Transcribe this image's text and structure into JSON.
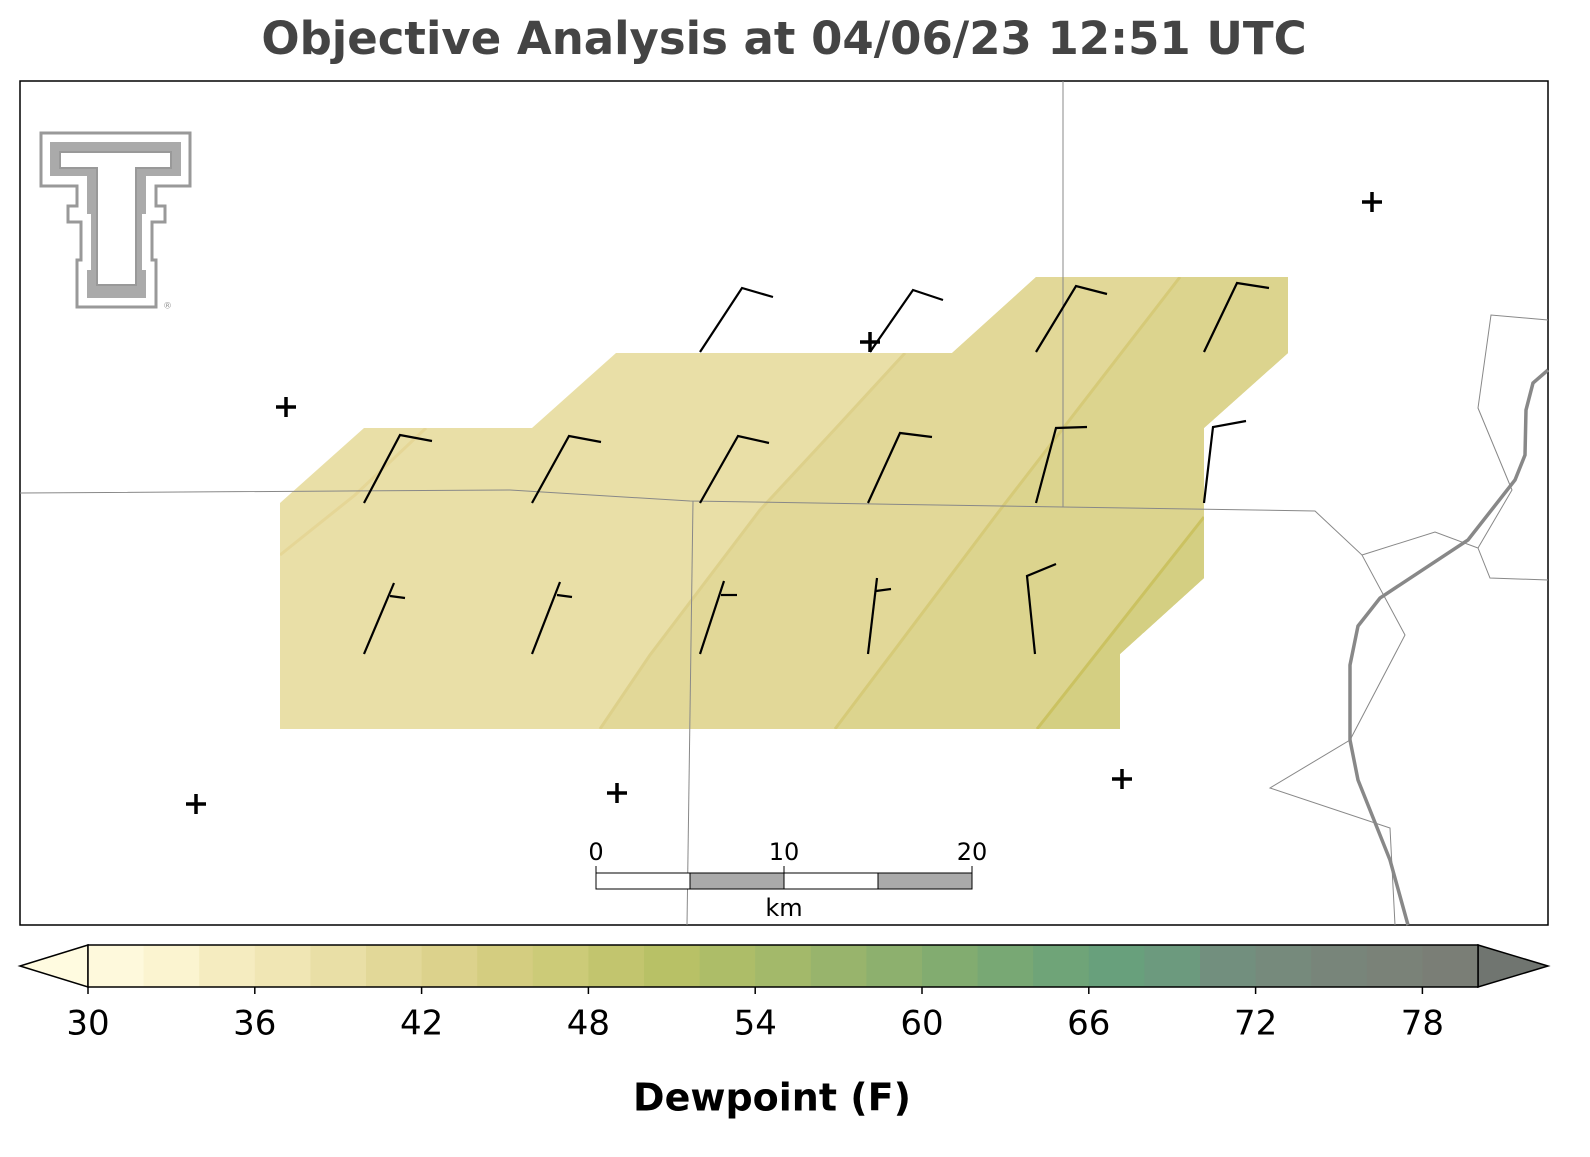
{
  "title": "Objective Analysis at 04/06/23 12:51 UTC",
  "scale_bar": {
    "lim": [
      0,
      20
    ],
    "ticks": [
      0,
      10,
      20
    ],
    "unit": "km"
  },
  "colorbar": {
    "label": "Dewpoint (F)",
    "lim": [
      30,
      80
    ],
    "ticks": [
      30,
      36,
      42,
      48,
      54,
      60,
      66,
      72,
      78
    ],
    "colors": [
      "#fef9dc",
      "#fbf4d0",
      "#f5ecc0",
      "#f0e6b4",
      "#e9dfa6",
      "#e2d898",
      "#dcd28c",
      "#d4cd80",
      "#cccb78",
      "#c2c56e",
      "#b8c166",
      "#adbd68",
      "#a3b96a",
      "#98b46c",
      "#8db06e",
      "#82ac70",
      "#78a874",
      "#6fa478",
      "#68a07c",
      "#6c9a7e",
      "#728f7e",
      "#768a7c",
      "#78857a",
      "#7a8278",
      "#7a7e76"
    ],
    "extend_colors": [
      "#fffbe0",
      "#707570"
    ]
  }
}
